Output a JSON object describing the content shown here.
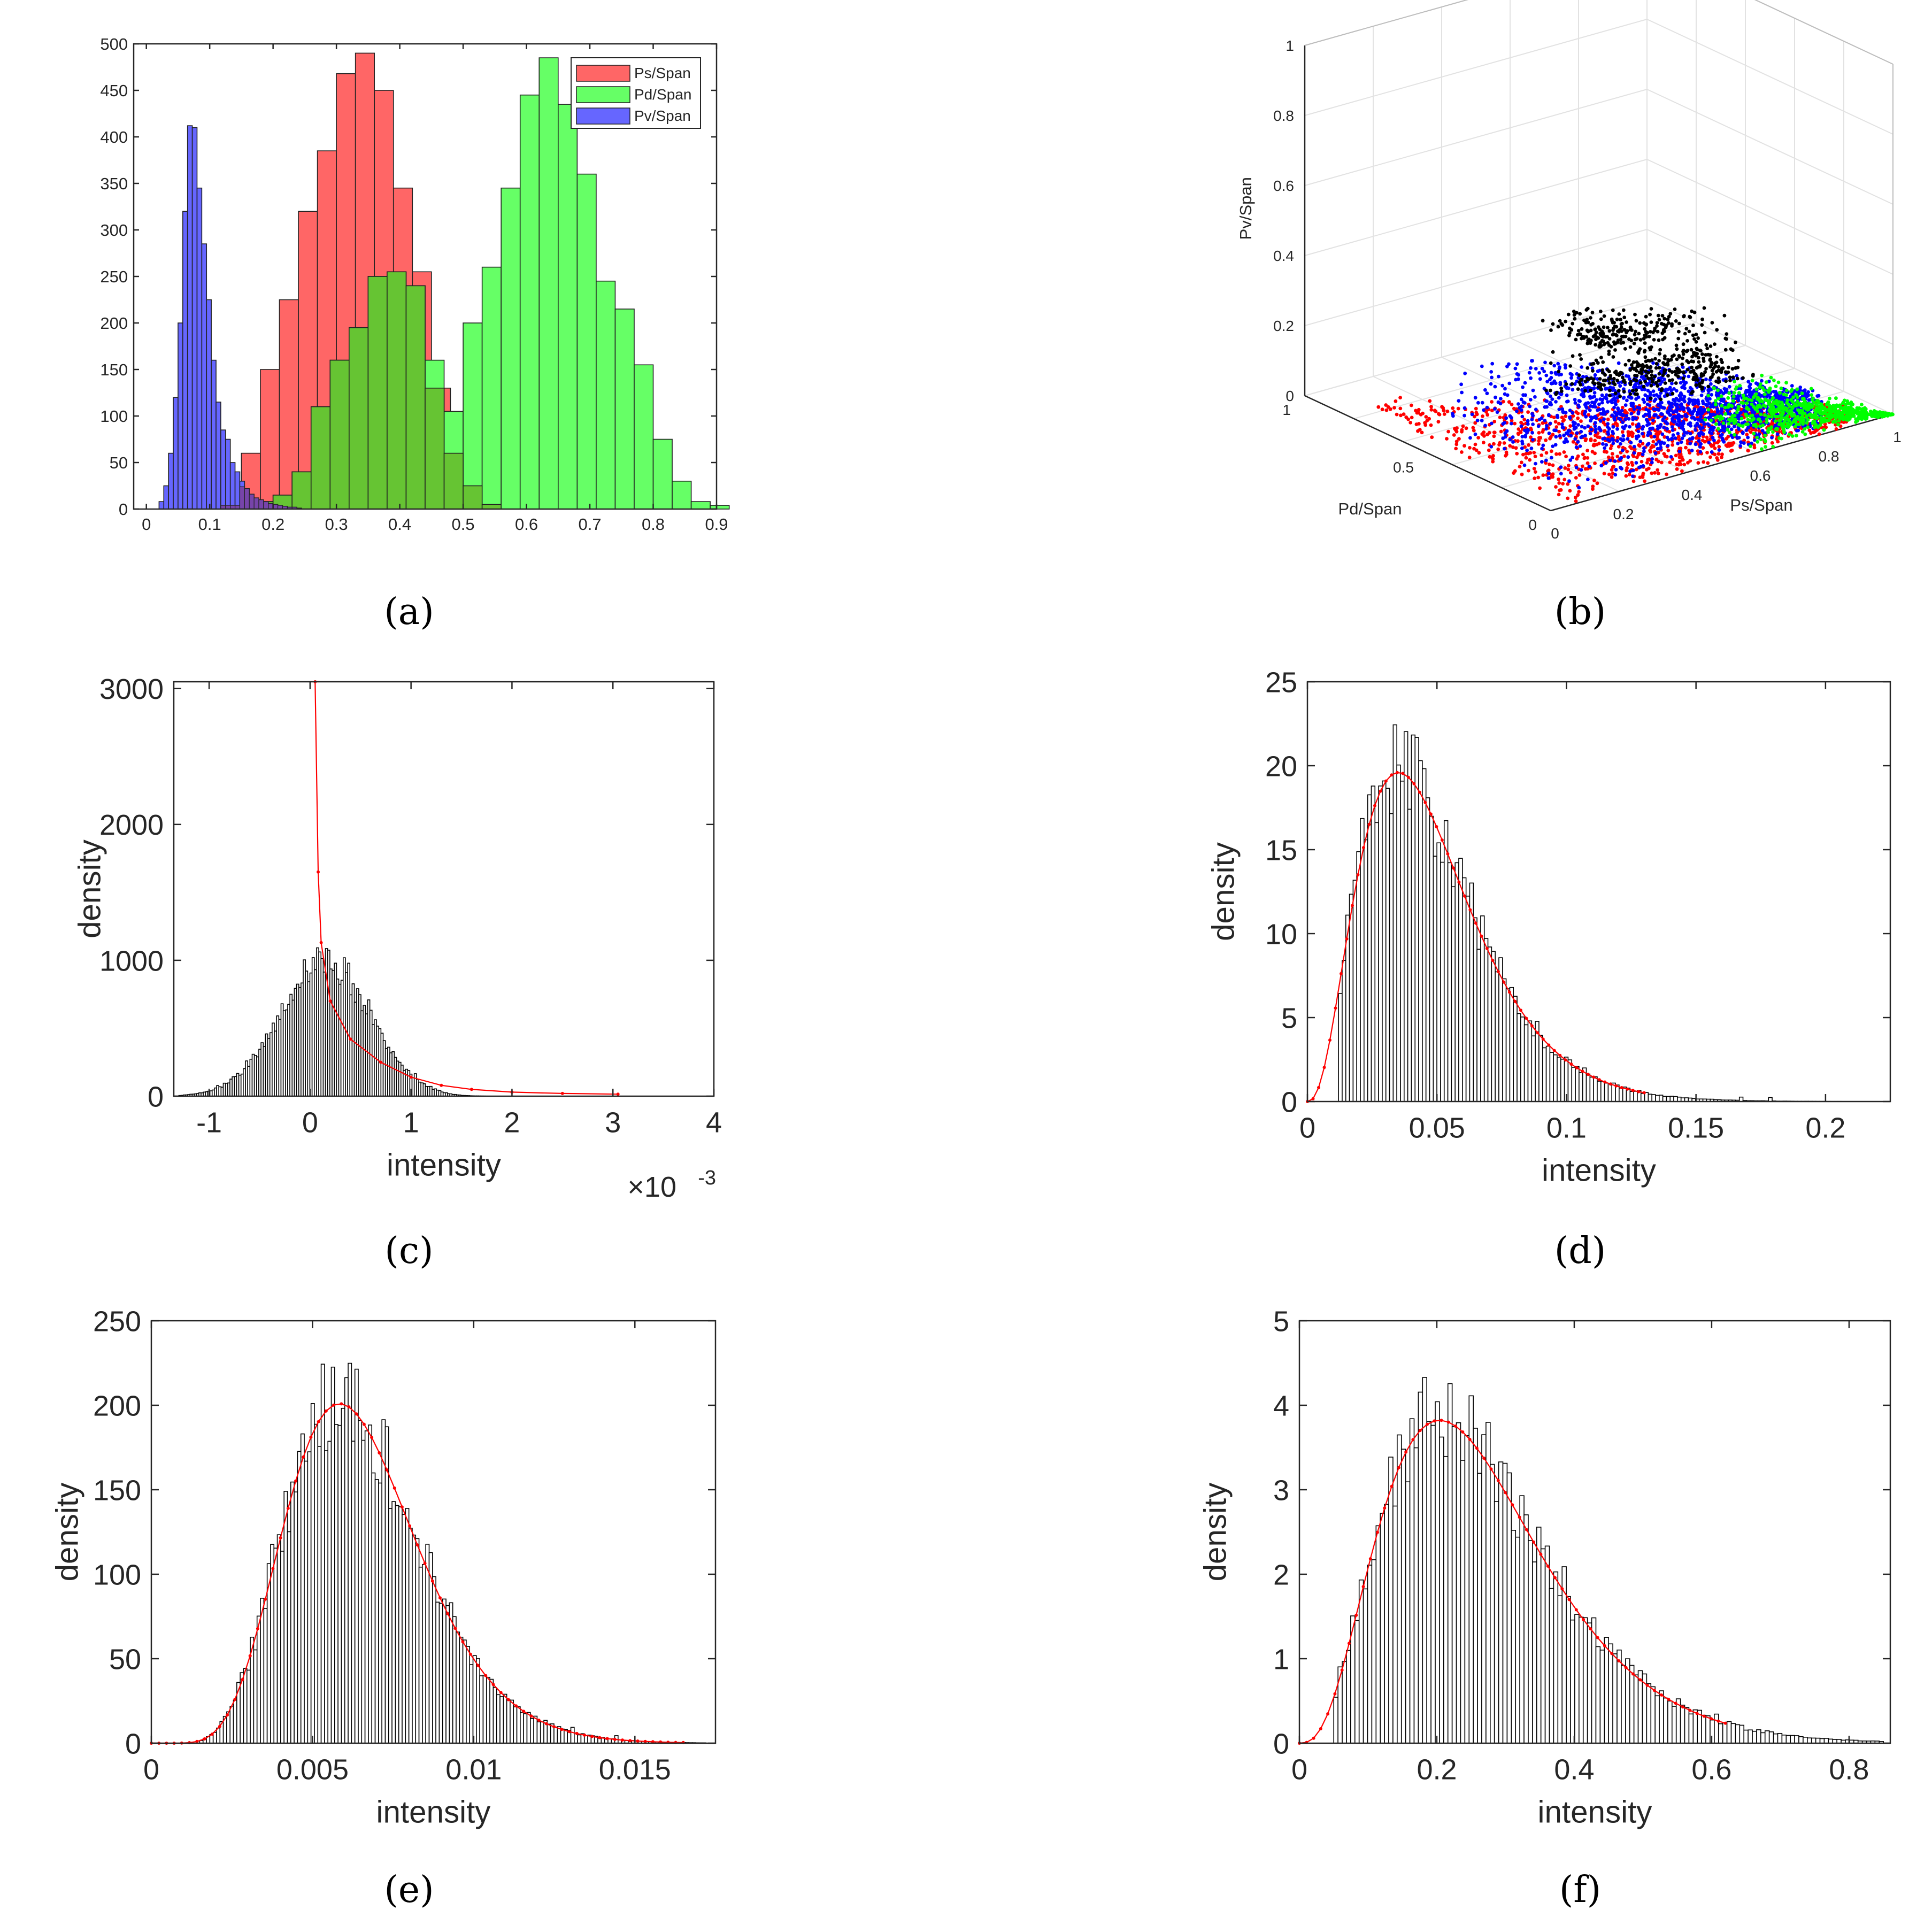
{
  "captions": {
    "a": "(a)",
    "b": "(b)",
    "c": "(c)",
    "d": "(d)",
    "e": "(e)",
    "f": "(f)"
  },
  "colors": {
    "ps": "#ff6666",
    "pd": "#66ff66",
    "pv": "#6666ff",
    "overlap_pspd": "#66c433",
    "overlap_pvps": "#7744aa",
    "fit_line": "#ff0000",
    "hist_bar": "#ffffff",
    "axis": "#262626"
  },
  "chart_data": [
    {
      "panel": "a",
      "type": "bar",
      "legend": [
        "Ps/Span",
        "Pd/Span",
        "Pv/Span"
      ],
      "legend_position": "top-right",
      "xlim": [
        -0.02,
        0.9
      ],
      "ylim": [
        0,
        500
      ],
      "xticks": [
        "0",
        "0.1",
        "0.2",
        "0.3",
        "0.4",
        "0.5",
        "0.6",
        "0.7",
        "0.8",
        "0.9"
      ],
      "yticks": [
        "0",
        "50",
        "100",
        "150",
        "200",
        "250",
        "300",
        "350",
        "400",
        "450",
        "500"
      ],
      "series": [
        {
          "name": "Ps/Span",
          "bin_start": 0.12,
          "bin_width": 0.03,
          "values": [
            10,
            60,
            150,
            225,
            320,
            385,
            468,
            490,
            450,
            345,
            255,
            130,
            60,
            25,
            5
          ]
        },
        {
          "name": "Pd/Span",
          "bin_start": 0.17,
          "bin_width": 0.03,
          "values": [
            8,
            15,
            40,
            110,
            160,
            195,
            250,
            255,
            240,
            160,
            105,
            200,
            260,
            345,
            445,
            485,
            435,
            360,
            245,
            215,
            155,
            75,
            30,
            8,
            4
          ]
        },
        {
          "name": "Pv/Span",
          "bin_start": 0.02,
          "bin_width": 0.0075,
          "values": [
            8,
            25,
            60,
            120,
            200,
            320,
            412,
            410,
            345,
            285,
            225,
            160,
            115,
            85,
            75,
            50,
            40,
            30,
            22,
            16,
            12,
            10,
            8,
            6,
            5,
            4,
            3,
            2,
            2,
            1
          ]
        }
      ]
    },
    {
      "panel": "b",
      "type": "scatter",
      "xlabel": "Ps/Span",
      "ylabel": "Pd/Span",
      "zlabel": "Pv/Span",
      "xticks": [
        "0",
        "0.2",
        "0.4",
        "0.6",
        "0.8",
        "1"
      ],
      "yticks": [
        "0",
        "0.5",
        "1"
      ],
      "zticks": [
        "0",
        "0.2",
        "0.4",
        "0.6",
        "0.8",
        "1"
      ],
      "xlim": [
        0,
        1
      ],
      "ylim": [
        0,
        1
      ],
      "zlim": [
        0,
        1
      ],
      "clusters": [
        {
          "color": "#ff0000",
          "ps": [
            0.05,
            0.95
          ],
          "pv": [
            0.0,
            0.04
          ]
        },
        {
          "color": "#0000ff",
          "ps": [
            0.1,
            0.8
          ],
          "pv": [
            0.0,
            0.3
          ]
        },
        {
          "color": "#00ff00",
          "ps": [
            0.55,
            1.0
          ],
          "pv": [
            0.0,
            0.15
          ]
        },
        {
          "color": "#000000",
          "ps": [
            0.1,
            0.55
          ],
          "pv": [
            0.25,
            0.45
          ]
        }
      ]
    },
    {
      "panel": "c",
      "type": "bar",
      "xlabel": "intensity",
      "ylabel": "density",
      "exponent": "×10",
      "exponent_power": "-3",
      "xlim": [
        -1.35,
        4.0
      ],
      "ylim": [
        0,
        3050
      ],
      "xticks": [
        "-1",
        "0",
        "1",
        "2",
        "3",
        "4"
      ],
      "yticks": [
        "0",
        "1000",
        "2000",
        "3000"
      ],
      "hist": {
        "mu": 0.15,
        "sigma": 0.45,
        "peak": 1000,
        "range": [
          -1.3,
          2.0
        ],
        "n": 150
      },
      "fit": {
        "points": [
          [
            0.05,
            3050
          ],
          [
            0.08,
            1650
          ],
          [
            0.11,
            1130
          ],
          [
            0.2,
            700
          ],
          [
            0.4,
            420
          ],
          [
            0.7,
            250
          ],
          [
            1.0,
            140
          ],
          [
            1.3,
            80
          ],
          [
            1.6,
            50
          ],
          [
            2.0,
            30
          ],
          [
            2.5,
            20
          ],
          [
            3.05,
            15
          ]
        ]
      }
    },
    {
      "panel": "d",
      "type": "bar",
      "xlabel": "intensity",
      "ylabel": "density",
      "xlim": [
        0,
        0.225
      ],
      "ylim": [
        0,
        25
      ],
      "xticks": [
        "0",
        "0.05",
        "0.1",
        "0.15",
        "0.2"
      ],
      "yticks": [
        "0",
        "5",
        "10",
        "15",
        "20",
        "25"
      ],
      "hist": {
        "shape": 3.6,
        "scale": 0.0135,
        "peak": 20,
        "range": [
          0.012,
          0.223
        ],
        "n": 150
      },
      "fit": {
        "shape": 3.6,
        "scale": 0.0135,
        "range": [
          0,
          0.13
        ],
        "n": 60
      }
    },
    {
      "panel": "e",
      "type": "bar",
      "xlabel": "intensity",
      "ylabel": "density",
      "xlim": [
        0,
        0.0175
      ],
      "ylim": [
        0,
        250
      ],
      "xticks": [
        "0",
        "0.005",
        "0.01",
        "0.015"
      ],
      "yticks": [
        "0",
        "50",
        "100",
        "150",
        "200",
        "250"
      ],
      "hist": {
        "shape": 9.0,
        "scale": 0.00073,
        "peak": 205,
        "range": [
          0.0015,
          0.0172
        ],
        "n": 150
      },
      "fit": {
        "shape": 9.0,
        "scale": 0.00073,
        "range": [
          0,
          0.0165
        ],
        "n": 70
      }
    },
    {
      "panel": "f",
      "type": "bar",
      "xlabel": "intensity",
      "ylabel": "density",
      "xlim": [
        0,
        0.86
      ],
      "ylim": [
        0,
        5
      ],
      "xticks": [
        "0",
        "0.2",
        "0.4",
        "0.6",
        "0.8"
      ],
      "yticks": [
        "0",
        "1",
        "2",
        "3",
        "4",
        "5"
      ],
      "hist": {
        "shape": 4.0,
        "scale": 0.068,
        "peak": 3.9,
        "range": [
          0.05,
          0.85
        ],
        "n": 130
      },
      "fit": {
        "shape": 4.0,
        "scale": 0.068,
        "range": [
          0,
          0.62
        ],
        "n": 60
      }
    }
  ]
}
